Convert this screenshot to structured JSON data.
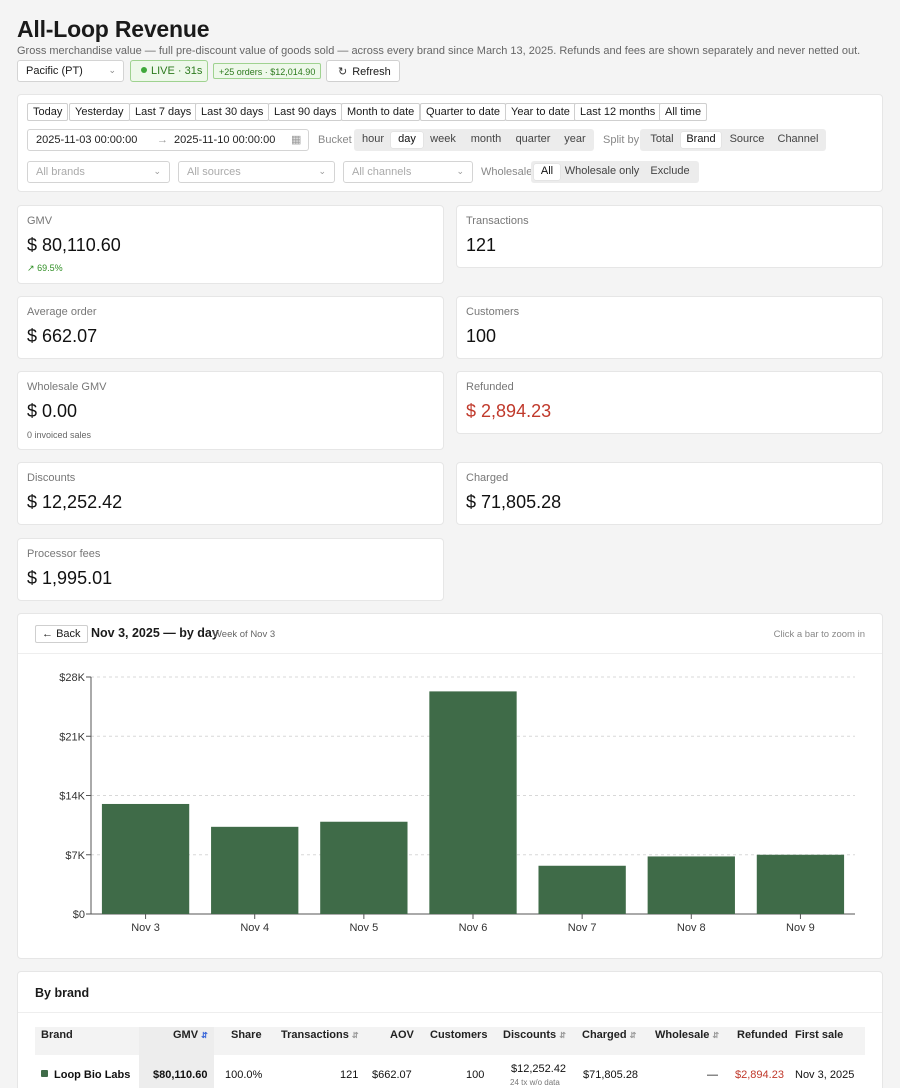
{
  "header": {
    "title": "All-Loop Revenue",
    "subtitle": "Gross merchandise value — full pre-discount value of goods sold — across every brand since March 13, 2025. Refunds and fees are shown separately and never netted out.",
    "timezone": "Pacific (PT)",
    "live_label": "LIVE · 31s",
    "orders_badge": "+25 orders · $12,014.90",
    "refresh_label": "Refresh"
  },
  "filters": {
    "ranges": [
      "Today",
      "Yesterday",
      "Last 7 days",
      "Last 30 days",
      "Last 90 days",
      "Month to date",
      "Quarter to date",
      "Year to date",
      "Last 12 months",
      "All time"
    ],
    "date_from": "2025-11-03 00:00:00",
    "date_to": "2025-11-10 00:00:00",
    "bucket_label": "Bucket",
    "buckets": [
      "hour",
      "day",
      "week",
      "month",
      "quarter",
      "year"
    ],
    "bucket_selected": "day",
    "split_label": "Split by",
    "splits": [
      "Total",
      "Brand",
      "Source",
      "Channel"
    ],
    "split_selected": "Brand",
    "brands_placeholder": "All brands",
    "sources_placeholder": "All sources",
    "channels_placeholder": "All channels",
    "wholesale_label": "Wholesale",
    "wholesale_options": [
      "All",
      "Wholesale only",
      "Exclude"
    ],
    "wholesale_selected": "All"
  },
  "metrics": {
    "gmv": {
      "label": "GMV",
      "currency": "$",
      "value": "80,110.60",
      "delta": "69.5%"
    },
    "transactions": {
      "label": "Transactions",
      "value": "121"
    },
    "avg_order": {
      "label": "Average order",
      "currency": "$",
      "value": "662.07"
    },
    "customers": {
      "label": "Customers",
      "value": "100"
    },
    "wholesale_gmv": {
      "label": "Wholesale GMV",
      "currency": "$",
      "value": "0.00",
      "note": "0 invoiced sales"
    },
    "refunded": {
      "label": "Refunded",
      "currency": "$",
      "value": "2,894.23"
    },
    "discounts": {
      "label": "Discounts",
      "currency": "$",
      "value": "12,252.42"
    },
    "charged": {
      "label": "Charged",
      "currency": "$",
      "value": "71,805.28"
    },
    "processor_fees": {
      "label": "Processor fees",
      "currency": "$",
      "value": "1,995.01"
    }
  },
  "chart_panel": {
    "back_label": "Back",
    "title": "Nov 3, 2025 — by day",
    "subtitle": "Week of Nov 3",
    "hint": "Click a bar to zoom in",
    "bar_color": "#3f6b48"
  },
  "chart_data": {
    "type": "bar",
    "categories": [
      "Nov 3",
      "Nov 4",
      "Nov 5",
      "Nov 6",
      "Nov 7",
      "Nov 8",
      "Nov 9"
    ],
    "values": [
      13000,
      10300,
      10900,
      26300,
      5700,
      6800,
      7000
    ],
    "ylim": [
      0,
      28000
    ],
    "yticks": [
      0,
      7000,
      14000,
      21000,
      28000
    ],
    "ytick_labels": [
      "$0",
      "$7K",
      "$14K",
      "$21K",
      "$28K"
    ],
    "grid": true
  },
  "by_brand": {
    "title": "By brand",
    "columns": [
      "Brand",
      "GMV",
      "Share",
      "Transactions",
      "AOV",
      "Customers",
      "Discounts",
      "Charged",
      "Wholesale",
      "Refunded",
      "First sale"
    ],
    "rows": [
      {
        "brand": "Loop Bio Labs",
        "gmv": "$80,110.60",
        "share": "100.0%",
        "transactions": "121",
        "aov": "$662.07",
        "customers": "100",
        "discounts": "$12,252.42",
        "discounts_note": "24 tx w/o data",
        "charged": "$71,805.28",
        "wholesale": "—",
        "refunded": "$2,894.23",
        "first_sale": "Nov 3, 2025",
        "color": "#3f6b48"
      }
    ]
  }
}
